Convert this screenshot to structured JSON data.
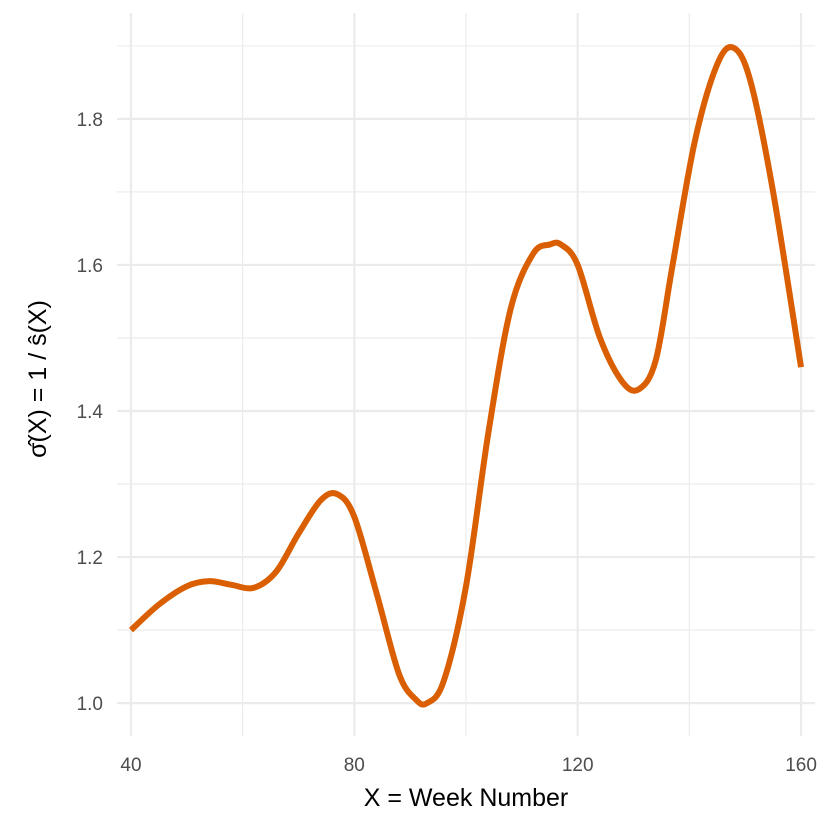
{
  "chart_data": {
    "type": "line",
    "xlabel": "X = Week Number",
    "ylabel": "σ̂(X) = 1 / ŝ(X)",
    "xlim": [
      37.5,
      162.5
    ],
    "ylim": [
      0.955,
      1.945
    ],
    "x_ticks": [
      40,
      80,
      120,
      160
    ],
    "x_tick_labels": [
      "40",
      "80",
      "120",
      "160"
    ],
    "x_minor_ticks": [
      60,
      100,
      140
    ],
    "y_ticks": [
      1.0,
      1.2,
      1.4,
      1.6,
      1.8
    ],
    "y_tick_labels": [
      "1.0",
      "1.2",
      "1.4",
      "1.6",
      "1.8"
    ],
    "y_minor_ticks": [
      1.1,
      1.3,
      1.5,
      1.7,
      1.9
    ],
    "grid": true,
    "legend": "none",
    "colors": {
      "line": "#D95F02",
      "grid": "#EBEBEB",
      "tick_text": "#4D4D4D"
    },
    "series": [
      {
        "x": [
          40,
          45,
          50,
          54,
          58,
          62,
          66,
          70,
          74,
          77,
          80,
          84,
          88,
          91,
          93,
          96,
          100,
          104,
          108,
          112,
          115,
          117,
          120,
          124,
          128,
          131,
          134,
          137,
          141,
          145,
          148,
          151,
          155,
          160
        ],
        "values": [
          1.1,
          1.135,
          1.16,
          1.167,
          1.162,
          1.158,
          1.18,
          1.232,
          1.278,
          1.286,
          1.255,
          1.15,
          1.04,
          1.005,
          1.0,
          1.03,
          1.16,
          1.37,
          1.54,
          1.615,
          1.628,
          1.628,
          1.6,
          1.5,
          1.44,
          1.43,
          1.47,
          1.6,
          1.77,
          1.875,
          1.897,
          1.85,
          1.7,
          1.46
        ]
      }
    ]
  }
}
